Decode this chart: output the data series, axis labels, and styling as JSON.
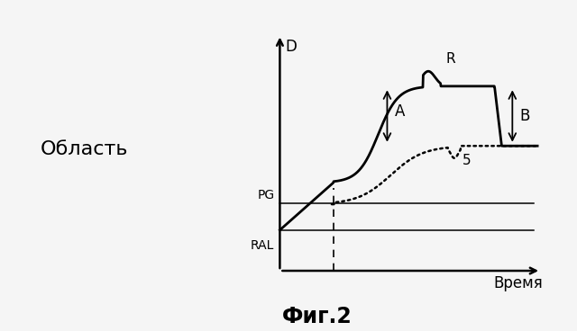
{
  "title": "Фиг.2",
  "xlabel": "Время",
  "ylabel": "D",
  "label_oblast": "Область",
  "label_R": "R",
  "label_A": "A",
  "label_B": "B",
  "label_5": "5",
  "label_PG": "PG",
  "label_RAL": "RAL",
  "bg_color": "#f5f5f5",
  "line_color": "#000000",
  "figsize": [
    6.4,
    3.68
  ],
  "dpi": 100,
  "xlim": [
    0,
    10
  ],
  "ylim": [
    0,
    10
  ],
  "axis_x_start": 2.5,
  "axis_y_bottom": 1.0,
  "ral_y": 2.5,
  "pg_y": 3.5,
  "high_y": 7.8,
  "dotted_high": 5.6,
  "dashed_x": 4.0
}
